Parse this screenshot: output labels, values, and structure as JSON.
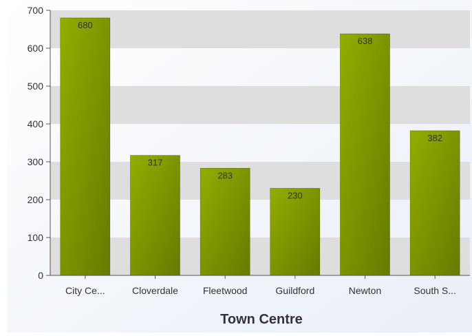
{
  "chart_data": {
    "type": "bar",
    "title": "",
    "xlabel": "Town Centre",
    "ylabel": "",
    "categories": [
      "City Ce...",
      "Cloverdale",
      "Fleetwood",
      "Guildford",
      "Newton",
      "South S..."
    ],
    "values": [
      680,
      317,
      283,
      230,
      638,
      382
    ],
    "ylim": [
      0,
      700
    ],
    "yticks": [
      0,
      100,
      200,
      300,
      400,
      500,
      600,
      700
    ],
    "grid": "alternating horizontal bands",
    "show_data_labels": true
  },
  "colors": {
    "bar_light": "#93ad00",
    "bar_dark": "#667a00",
    "band": "#dedede",
    "panel_bg_top": "#ffffff",
    "panel_bg_bottom": "#e9eef7",
    "axis": "#555555",
    "text": "#333333"
  }
}
